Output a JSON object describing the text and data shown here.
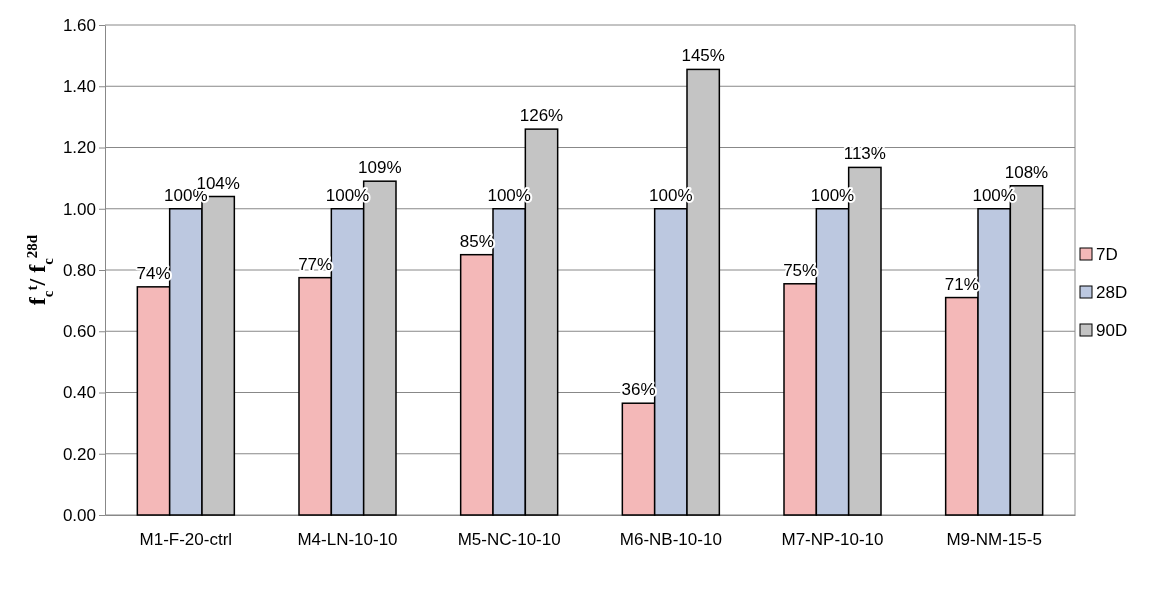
{
  "chart_data": {
    "type": "bar",
    "ylabel": "f$_{c}$$^{t}$/ f$_{c}$$^{28d}$",
    "categories": [
      "M1-F-20-ctrl",
      "M4-LN-10-10",
      "M5-NC-10-10",
      "M6-NB-10-10",
      "M7-NP-10-10",
      "M9-NM-15-5"
    ],
    "series": [
      {
        "name": "7D",
        "color": "#f4b8b8",
        "values": [
          0.745,
          0.775,
          0.85,
          0.365,
          0.755,
          0.71
        ],
        "value_labels": [
          "74%",
          "77%",
          "85%",
          "36%",
          "75%",
          "71%"
        ]
      },
      {
        "name": "28D",
        "color": "#bcc8e0",
        "values": [
          1.0,
          1.0,
          1.0,
          1.0,
          1.0,
          1.0
        ],
        "value_labels": [
          "100%",
          "100%",
          "100%",
          "100%",
          "100%",
          "100%"
        ]
      },
      {
        "name": "90D",
        "color": "#c4c4c4",
        "values": [
          1.04,
          1.09,
          1.26,
          1.455,
          1.135,
          1.075
        ],
        "value_labels": [
          "104%",
          "109%",
          "126%",
          "145%",
          "113%",
          "108%"
        ]
      }
    ],
    "ylim": [
      0,
      1.6
    ],
    "yticks": [
      {
        "value": 0,
        "label": "0.00"
      },
      {
        "value": 0.2,
        "label": "0.20"
      },
      {
        "value": 0.4,
        "label": "0.40"
      },
      {
        "value": 0.6,
        "label": "0.60"
      },
      {
        "value": 0.8,
        "label": "0.80"
      },
      {
        "value": 1,
        "label": "1.00"
      },
      {
        "value": 1.2,
        "label": "1.20"
      },
      {
        "value": 1.4,
        "label": "1.40"
      },
      {
        "value": 1.6,
        "label": "1.60"
      }
    ],
    "grid": "y",
    "legend": "right"
  }
}
